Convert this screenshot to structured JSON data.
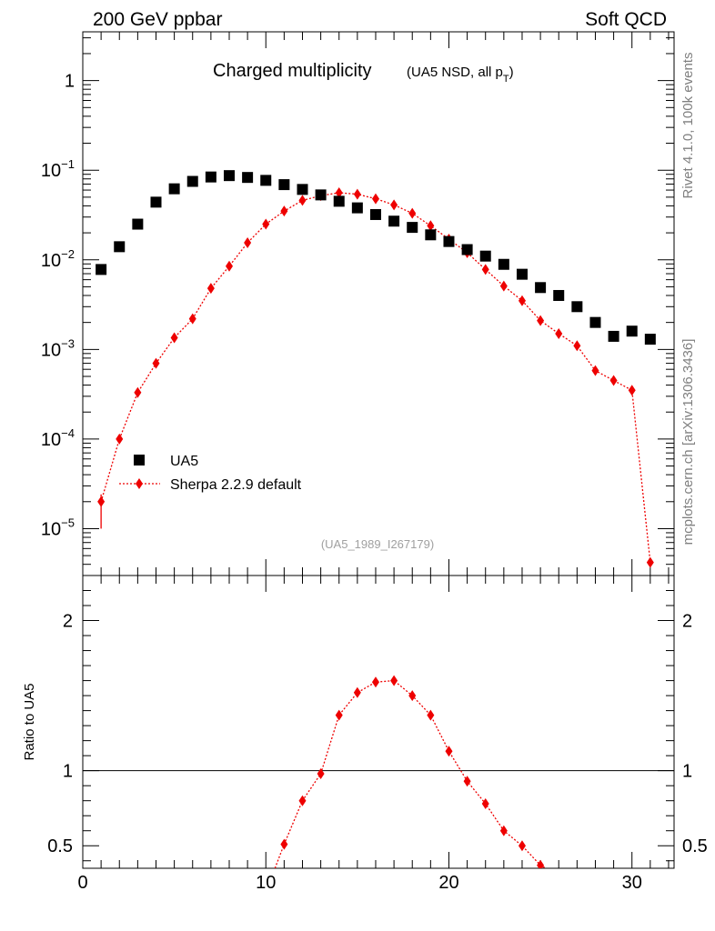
{
  "header": {
    "left": "200 GeV ppbar",
    "right": "Soft QCD"
  },
  "side": {
    "rivet": "Rivet 4.1.0,  100k events",
    "mcplots": "mcplots.cern.ch [arXiv:1306.3436]"
  },
  "chart_data": [
    {
      "type": "scatter",
      "title": "Charged multiplicity",
      "subtitle": "(UA5 NSD, all p",
      "subtitle_sub": "T",
      "subtitle_close": ")",
      "analysis_label": "(UA5_1989_I267179)",
      "xlabel": "",
      "ylabel": "",
      "yscale": "log",
      "xlim": [
        0,
        32.3
      ],
      "ylim": [
        3e-06,
        3.5
      ],
      "x_ticks": [
        "0",
        "10",
        "20",
        "30"
      ],
      "y_ticks": [
        {
          "base": "1",
          "exp": ""
        },
        {
          "base": "10",
          "exp": "−1"
        },
        {
          "base": "10",
          "exp": "−2"
        },
        {
          "base": "10",
          "exp": "−3"
        },
        {
          "base": "10",
          "exp": "−4"
        },
        {
          "base": "10",
          "exp": "−5"
        }
      ],
      "series": [
        {
          "name": "UA5",
          "marker": "square",
          "color": "#000000",
          "x": [
            1,
            2,
            3,
            4,
            5,
            6,
            7,
            8,
            9,
            10,
            11,
            12,
            13,
            14,
            15,
            16,
            17,
            18,
            19,
            20,
            21,
            22,
            23,
            24,
            25,
            26,
            27,
            28,
            29,
            30,
            31
          ],
          "y": [
            0.0078,
            0.014,
            0.025,
            0.044,
            0.062,
            0.075,
            0.084,
            0.087,
            0.083,
            0.077,
            0.069,
            0.061,
            0.053,
            0.045,
            0.038,
            0.032,
            0.027,
            0.023,
            0.019,
            0.016,
            0.013,
            0.011,
            0.0089,
            0.0069,
            0.0049,
            0.004,
            0.003,
            0.002,
            0.0014,
            0.0016,
            0.0013
          ]
        },
        {
          "name": "Sherpa 2.2.9 default",
          "marker": "diamond",
          "line": "dotted",
          "color": "#ee0000",
          "x": [
            1,
            2,
            3,
            4,
            5,
            6,
            7,
            8,
            9,
            10,
            11,
            12,
            13,
            14,
            15,
            16,
            17,
            18,
            19,
            20,
            21,
            22,
            23,
            24,
            25,
            26,
            27,
            28,
            29,
            30,
            31
          ],
          "y": [
            2e-05,
            0.0001,
            0.00033,
            0.0007,
            0.00135,
            0.0022,
            0.0048,
            0.0085,
            0.0155,
            0.025,
            0.035,
            0.046,
            0.052,
            0.056,
            0.054,
            0.048,
            0.041,
            0.033,
            0.024,
            0.017,
            0.012,
            0.0078,
            0.0051,
            0.0035,
            0.0021,
            0.0015,
            0.0011,
            0.00058,
            0.00045,
            0.00035,
            4.2e-06
          ]
        }
      ]
    },
    {
      "type": "line",
      "ylabel": "Ratio to UA5",
      "xlim": [
        0,
        32.3
      ],
      "ylim": [
        0.35,
        2.3
      ],
      "x_ticks": [
        "0",
        "10",
        "20",
        "30"
      ],
      "y_ticks": [
        "2",
        "1",
        "0.5"
      ],
      "reference_line": 1,
      "series": [
        {
          "name": "Sherpa 2.2.9 default",
          "marker": "diamond",
          "line": "dotted",
          "color": "#ee0000",
          "x": [
            10.5,
            11,
            12,
            13,
            14,
            15,
            16,
            17,
            18,
            19,
            20,
            21,
            22,
            23,
            24,
            25,
            25.3
          ],
          "y": [
            0.35,
            0.51,
            0.8,
            0.98,
            1.37,
            1.52,
            1.59,
            1.6,
            1.5,
            1.37,
            1.13,
            0.93,
            0.78,
            0.6,
            0.5,
            0.37,
            0.35
          ]
        }
      ]
    }
  ]
}
